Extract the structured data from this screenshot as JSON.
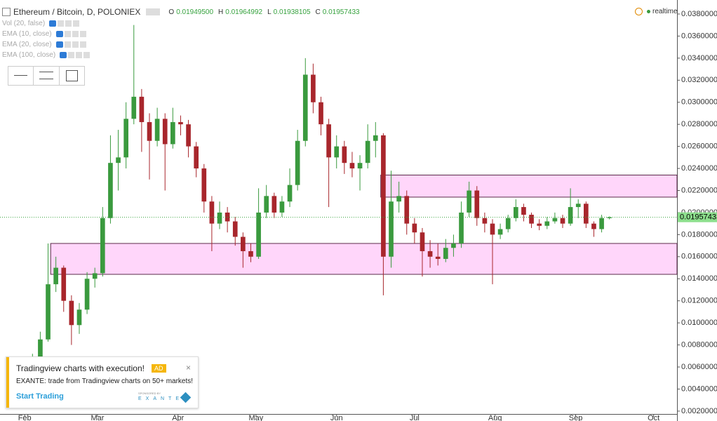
{
  "chart_data": {
    "type": "candlestick",
    "title": "Ethereum / Bitcoin, D, POLONIEX",
    "ohlc_labels": [
      "O",
      "H",
      "L",
      "C"
    ],
    "ohlc_values": [
      "0.01949500",
      "0.01964992",
      "0.01938105",
      "0.01957433"
    ],
    "indicators": [
      "Vol (20, false)",
      "EMA (10, close)",
      "EMA (20, close)",
      "EMA (100, close)"
    ],
    "status": "realtime",
    "last_price_label": "0.01957433",
    "up_color": "#3a9a3e",
    "down_color": "#a8262c",
    "x": [
      0,
      3,
      6,
      9,
      12,
      15,
      18,
      21,
      24,
      27,
      30,
      33,
      36,
      39,
      42,
      45,
      48,
      51,
      54,
      57,
      60,
      63,
      66,
      69,
      72,
      75,
      78,
      81,
      84,
      87,
      90,
      93,
      96,
      99,
      102,
      105,
      108,
      111,
      114,
      117,
      120,
      123,
      126,
      129,
      132,
      135,
      138,
      141,
      144,
      147,
      150,
      153,
      156,
      159,
      162,
      165,
      168,
      171,
      174,
      177,
      180,
      183,
      186,
      189,
      192,
      195,
      198,
      201,
      204,
      207,
      210,
      213,
      216,
      219,
      222,
      225
    ],
    "ohlc": [
      [
        0.005,
        0.006,
        0.0048,
        0.0056
      ],
      [
        0.0056,
        0.0072,
        0.0054,
        0.0068
      ],
      [
        0.0068,
        0.0092,
        0.0066,
        0.0085
      ],
      [
        0.0085,
        0.0172,
        0.0083,
        0.0135
      ],
      [
        0.0135,
        0.016,
        0.0128,
        0.015
      ],
      [
        0.015,
        0.0152,
        0.011,
        0.012
      ],
      [
        0.012,
        0.0125,
        0.008,
        0.0098
      ],
      [
        0.0098,
        0.0118,
        0.009,
        0.0112
      ],
      [
        0.0112,
        0.0146,
        0.0108,
        0.014
      ],
      [
        0.014,
        0.015,
        0.0132,
        0.0145
      ],
      [
        0.0145,
        0.0205,
        0.0142,
        0.0195
      ],
      [
        0.0195,
        0.027,
        0.019,
        0.0245
      ],
      [
        0.0245,
        0.0275,
        0.022,
        0.025
      ],
      [
        0.025,
        0.03,
        0.024,
        0.0285
      ],
      [
        0.0285,
        0.037,
        0.028,
        0.0305
      ],
      [
        0.0305,
        0.0312,
        0.0255,
        0.0282
      ],
      [
        0.0282,
        0.029,
        0.023,
        0.0265
      ],
      [
        0.0265,
        0.0295,
        0.026,
        0.0285
      ],
      [
        0.0285,
        0.029,
        0.022,
        0.0262
      ],
      [
        0.0262,
        0.0295,
        0.0258,
        0.0282
      ],
      [
        0.0282,
        0.0288,
        0.027,
        0.028
      ],
      [
        0.028,
        0.0284,
        0.025,
        0.026
      ],
      [
        0.026,
        0.0264,
        0.0232,
        0.024
      ],
      [
        0.024,
        0.0244,
        0.02,
        0.021
      ],
      [
        0.021,
        0.0215,
        0.0165,
        0.019
      ],
      [
        0.019,
        0.021,
        0.0185,
        0.02
      ],
      [
        0.02,
        0.0205,
        0.0182,
        0.0192
      ],
      [
        0.0192,
        0.0196,
        0.017,
        0.0178
      ],
      [
        0.0178,
        0.0182,
        0.015,
        0.0165
      ],
      [
        0.0165,
        0.0172,
        0.0155,
        0.016
      ],
      [
        0.016,
        0.0222,
        0.0158,
        0.02
      ],
      [
        0.02,
        0.0225,
        0.0195,
        0.0215
      ],
      [
        0.0215,
        0.0218,
        0.0195,
        0.02
      ],
      [
        0.02,
        0.0215,
        0.0196,
        0.021
      ],
      [
        0.021,
        0.024,
        0.0205,
        0.0225
      ],
      [
        0.0225,
        0.0275,
        0.022,
        0.0265
      ],
      [
        0.0265,
        0.034,
        0.026,
        0.0325
      ],
      [
        0.0325,
        0.0335,
        0.029,
        0.03
      ],
      [
        0.03,
        0.0305,
        0.027,
        0.028
      ],
      [
        0.028,
        0.0285,
        0.0205,
        0.025
      ],
      [
        0.025,
        0.027,
        0.024,
        0.026
      ],
      [
        0.026,
        0.0265,
        0.0235,
        0.0245
      ],
      [
        0.0245,
        0.0255,
        0.0232,
        0.024
      ],
      [
        0.024,
        0.0252,
        0.022,
        0.0245
      ],
      [
        0.0245,
        0.028,
        0.024,
        0.0265
      ],
      [
        0.0265,
        0.0282,
        0.025,
        0.027
      ],
      [
        0.027,
        0.0272,
        0.0125,
        0.016
      ],
      [
        0.016,
        0.0238,
        0.015,
        0.021
      ],
      [
        0.021,
        0.0228,
        0.02,
        0.0215
      ],
      [
        0.0215,
        0.022,
        0.018,
        0.019
      ],
      [
        0.019,
        0.0195,
        0.0172,
        0.0182
      ],
      [
        0.0182,
        0.0186,
        0.0142,
        0.0165
      ],
      [
        0.0165,
        0.0175,
        0.015,
        0.016
      ],
      [
        0.016,
        0.0172,
        0.0152,
        0.0158
      ],
      [
        0.0158,
        0.0176,
        0.0155,
        0.0168
      ],
      [
        0.0168,
        0.018,
        0.016,
        0.0172
      ],
      [
        0.0172,
        0.021,
        0.0168,
        0.02
      ],
      [
        0.02,
        0.0228,
        0.0196,
        0.022
      ],
      [
        0.022,
        0.0224,
        0.0188,
        0.0195
      ],
      [
        0.0195,
        0.02,
        0.0182,
        0.019
      ],
      [
        0.019,
        0.0194,
        0.0135,
        0.018
      ],
      [
        0.018,
        0.019,
        0.0176,
        0.0185
      ],
      [
        0.0185,
        0.0198,
        0.0182,
        0.0195
      ],
      [
        0.0195,
        0.0212,
        0.0192,
        0.0205
      ],
      [
        0.0205,
        0.0208,
        0.0192,
        0.0198
      ],
      [
        0.0198,
        0.02,
        0.0186,
        0.019
      ],
      [
        0.019,
        0.0194,
        0.0184,
        0.0188
      ],
      [
        0.0188,
        0.0196,
        0.0185,
        0.0192
      ],
      [
        0.0192,
        0.02,
        0.019,
        0.0195
      ],
      [
        0.0195,
        0.0198,
        0.0186,
        0.019
      ],
      [
        0.019,
        0.0222,
        0.0188,
        0.0205
      ],
      [
        0.0205,
        0.0212,
        0.0195,
        0.0208
      ],
      [
        0.0208,
        0.021,
        0.0186,
        0.019
      ],
      [
        0.019,
        0.0192,
        0.0178,
        0.0185
      ],
      [
        0.0185,
        0.0198,
        0.0182,
        0.0195
      ],
      [
        0.019495,
        0.01964992,
        0.01938105,
        0.01957433
      ]
    ],
    "zones": [
      {
        "low": 0.0144,
        "high": 0.0172,
        "start": 10,
        "color": "#ffd6fa"
      },
      {
        "low": 0.0214,
        "high": 0.0234,
        "start": 137,
        "color": "#ffd6fa"
      }
    ],
    "xlim": [
      -9.5,
      251
    ],
    "xticks": [
      {
        "value": 0,
        "label": "Feb"
      },
      {
        "value": 28,
        "label": "Mar"
      },
      {
        "value": 59,
        "label": "Apr"
      },
      {
        "value": 89,
        "label": "May"
      },
      {
        "value": 120,
        "label": "Jun"
      },
      {
        "value": 150,
        "label": "Jul"
      },
      {
        "value": 181,
        "label": "Aug"
      },
      {
        "value": 212,
        "label": "Sep"
      },
      {
        "value": 242,
        "label": "Oct"
      }
    ],
    "ylim": [
      0.00174,
      0.03927
    ],
    "yticks": [
      {
        "value": 0.038,
        "label": "0.03800000"
      },
      {
        "value": 0.036,
        "label": "0.03600000"
      },
      {
        "value": 0.034,
        "label": "0.03400000"
      },
      {
        "value": 0.032,
        "label": "0.03200000"
      },
      {
        "value": 0.03,
        "label": "0.03000000"
      },
      {
        "value": 0.028,
        "label": "0.02800000"
      },
      {
        "value": 0.026,
        "label": "0.02600000"
      },
      {
        "value": 0.024,
        "label": "0.02400000"
      },
      {
        "value": 0.022,
        "label": "0.02200000"
      },
      {
        "value": 0.02,
        "label": "0.02000000"
      },
      {
        "value": 0.018,
        "label": "0.01800000"
      },
      {
        "value": 0.016,
        "label": "0.01600000"
      },
      {
        "value": 0.014,
        "label": "0.01400000"
      },
      {
        "value": 0.012,
        "label": "0.01200000"
      },
      {
        "value": 0.01,
        "label": "0.01000000"
      },
      {
        "value": 0.008,
        "label": "0.00800000"
      },
      {
        "value": 0.006,
        "label": "0.00600000"
      },
      {
        "value": 0.004,
        "label": "0.00400000"
      },
      {
        "value": 0.002,
        "label": "0.00200000"
      }
    ],
    "last_price": 0.01957433
  },
  "ad": {
    "title": "Tradingview charts with execution!",
    "badge": "AD",
    "text": "EXANTE: trade from Tradingview charts on 50+ markets!",
    "cta": "Start Trading",
    "sponsor_caption": "SPONSORED BY",
    "sponsor": "EXANTE"
  }
}
